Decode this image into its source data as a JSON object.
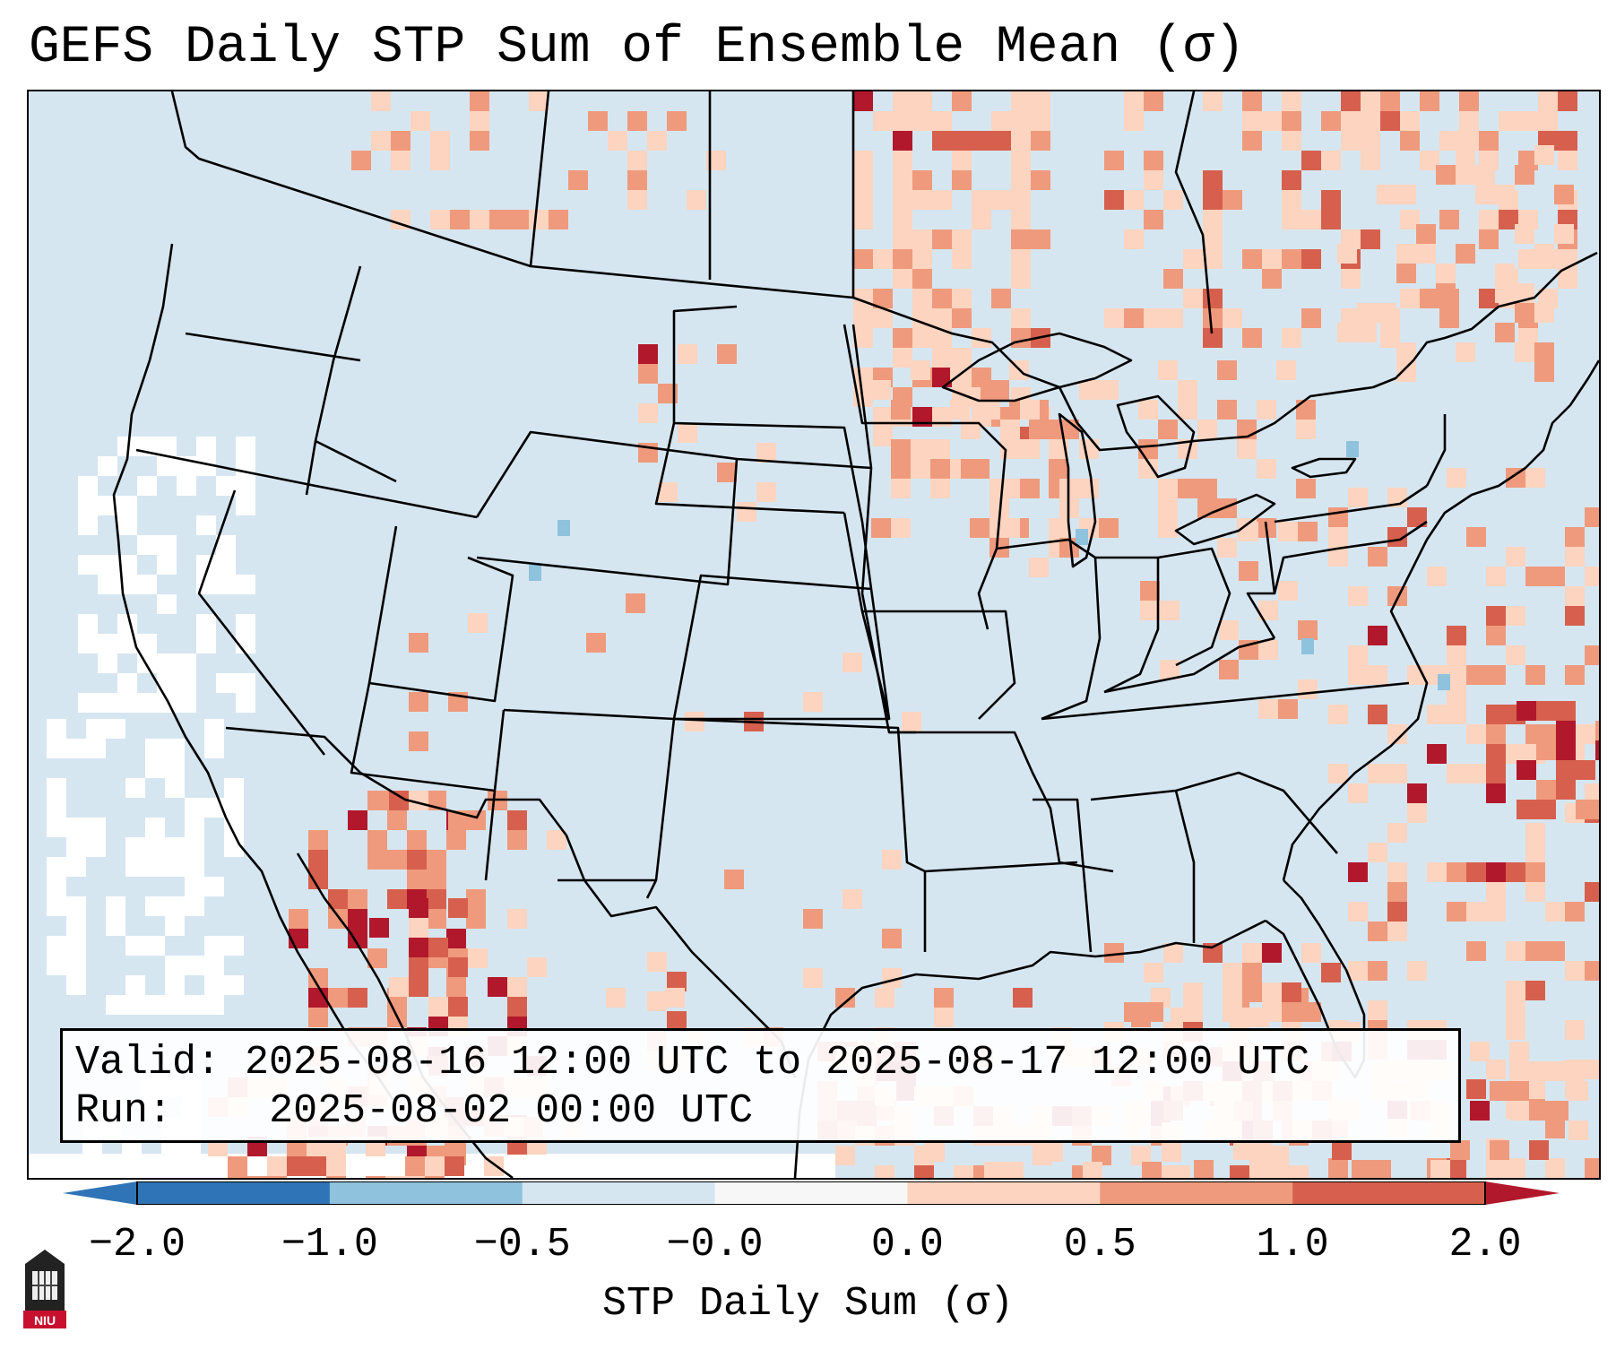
{
  "title": "GEFS Daily STP Sum of Ensemble Mean (σ)",
  "info": {
    "valid_label": "Valid:",
    "valid_value": "2025-08-16 12:00 UTC to 2025-08-17 12:00 UTC",
    "run_label": "Run:",
    "run_value": "2025-08-02 00:00 UTC"
  },
  "colorbar": {
    "label": "STP Daily Sum (σ)",
    "ticks": [
      "−2.0",
      "−1.0",
      "−0.5",
      "−0.0",
      "0.0",
      "0.5",
      "1.0",
      "2.0"
    ],
    "colors": [
      "#2f74b6",
      "#8ec2dd",
      "#d6e6f1",
      "#f7f7f7",
      "#fcd4bf",
      "#ef9a7c",
      "#d6604d",
      "#b2182b"
    ]
  },
  "map": {
    "background": "#d6e6f1",
    "colors": {
      "light": "#fcd4bf",
      "medium": "#ef9a7c",
      "strong": "#d6604d",
      "extreme": "#b2182b",
      "white": "#ffffff",
      "negative": "#8ec2dd"
    }
  },
  "logo": {
    "text": "NIU"
  }
}
